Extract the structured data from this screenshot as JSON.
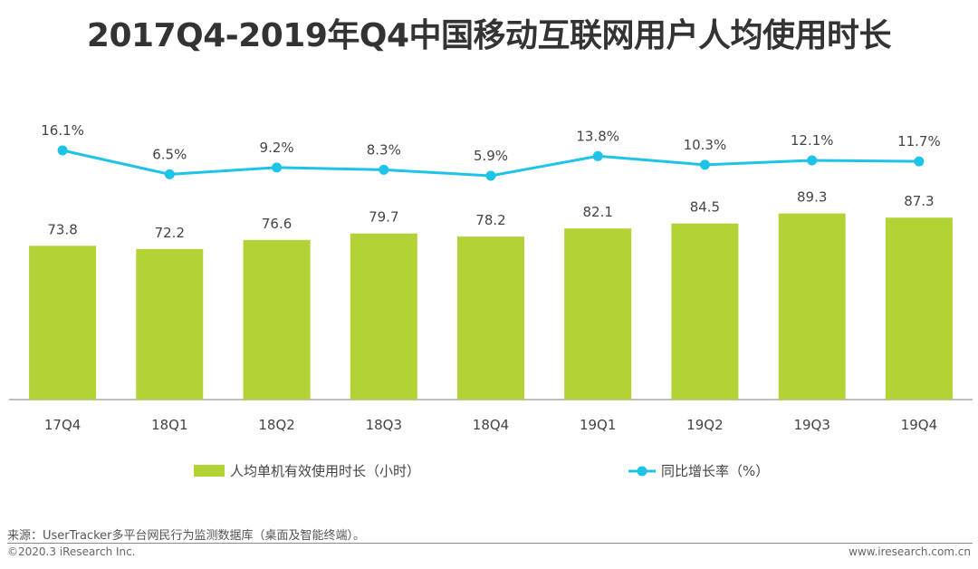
{
  "title": "2017Q4-2019年Q4中国移动互联网用户人均使用时长",
  "chart_data": {
    "type": "bar",
    "categories": [
      "17Q4",
      "18Q1",
      "18Q2",
      "18Q3",
      "18Q4",
      "19Q1",
      "19Q2",
      "19Q3",
      "19Q4"
    ],
    "series": [
      {
        "name": "人均单机有效使用时长（小时）",
        "kind": "bar",
        "values": [
          73.8,
          72.2,
          76.6,
          79.7,
          78.2,
          82.1,
          84.5,
          89.3,
          87.3
        ],
        "labels": [
          "73.8",
          "72.2",
          "76.6",
          "79.7",
          "78.2",
          "82.1",
          "84.5",
          "89.3",
          "87.3"
        ],
        "color": "#b2d235"
      },
      {
        "name": "同比增长率（%）",
        "kind": "line",
        "values": [
          16.1,
          6.5,
          9.2,
          8.3,
          5.9,
          13.8,
          10.3,
          12.1,
          11.7
        ],
        "labels": [
          "16.1%",
          "6.5%",
          "9.2%",
          "8.3%",
          "5.9%",
          "13.8%",
          "10.3%",
          "12.1%",
          "11.7%"
        ],
        "color": "#1ec3e8"
      }
    ],
    "bar_ylim": [
      0,
      100
    ],
    "line_ylim": [
      -100,
      50
    ],
    "xlabel": "",
    "ylabel": "",
    "legend_position": "bottom"
  },
  "footer": {
    "source": "来源：UserTracker多平台网民行为监测数据库（桌面及智能终端）。",
    "copyright": "©2020.3 iResearch Inc.",
    "website": "www.iresearch.com.cn"
  }
}
